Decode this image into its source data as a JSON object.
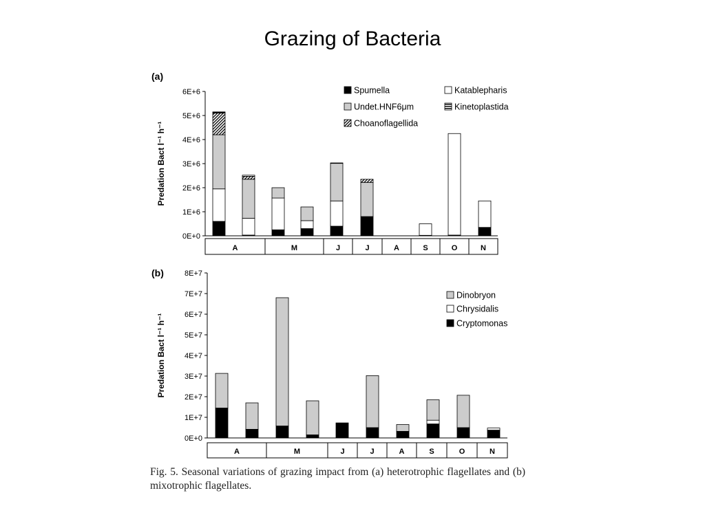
{
  "slide": {
    "title": "Grazing of Bacteria"
  },
  "caption": "Fig. 5. Seasonal variations of grazing impact from (a) heterotrophic flagellates and (b) mixotrophic flagellates.",
  "colors": {
    "black": "#000000",
    "grey": "#cccccc",
    "white": "#ffffff"
  },
  "chart_data": [
    {
      "type": "bar",
      "stacked": true,
      "panel_label": "(a)",
      "ylabel": "Predation Bact l⁻¹ h⁻¹",
      "ylim": [
        0,
        6000000
      ],
      "yticks": [
        "0E+0",
        "1E+6",
        "2E+6",
        "3E+6",
        "4E+6",
        "5E+6",
        "6E+6"
      ],
      "months": [
        "A",
        "M",
        "J",
        "J",
        "A",
        "S",
        "O",
        "N"
      ],
      "legend": [
        {
          "name": "Spumella",
          "pattern": "black"
        },
        {
          "name": "Katablepharis",
          "pattern": "white"
        },
        {
          "name": "Undet.HNF6μm",
          "pattern": "grey"
        },
        {
          "name": "Kinetoplastida",
          "pattern": "hstripe"
        },
        {
          "name": "Choanoflagellida",
          "pattern": "diag"
        }
      ],
      "bars": [
        {
          "segments": [
            600000,
            1350000,
            2250000,
            50000,
            900000
          ]
        },
        {
          "segments": [
            30000,
            700000,
            1620000,
            50000,
            120000
          ]
        },
        {
          "segments": [
            250000,
            1320000,
            430000,
            0,
            0
          ]
        },
        {
          "segments": [
            300000,
            330000,
            570000,
            0,
            0
          ]
        },
        {
          "segments": [
            400000,
            1050000,
            1560000,
            20000,
            0
          ]
        },
        {
          "segments": [
            800000,
            0,
            1420000,
            0,
            130000
          ]
        },
        {
          "segments": [
            0,
            0,
            0,
            0,
            0
          ]
        },
        {
          "segments": [
            20000,
            480000,
            0,
            0,
            0
          ]
        },
        {
          "segments": [
            30000,
            4220000,
            0,
            0,
            0
          ]
        },
        {
          "segments": [
            350000,
            1100000,
            0,
            0,
            0
          ]
        }
      ]
    },
    {
      "type": "bar",
      "stacked": true,
      "panel_label": "(b)",
      "ylabel": "Predation Bact l⁻¹ h⁻¹",
      "ylim": [
        0,
        80000000
      ],
      "yticks": [
        "0E+0",
        "1E+7",
        "2E+7",
        "3E+7",
        "4E+7",
        "5E+7",
        "6E+7",
        "7E+7",
        "8E+7"
      ],
      "months": [
        "A",
        "M",
        "J",
        "J",
        "A",
        "S",
        "O",
        "N"
      ],
      "legend": [
        {
          "name": "Dinobryon",
          "pattern": "grey"
        },
        {
          "name": "Chrysidalis",
          "pattern": "white"
        },
        {
          "name": "Cryptomonas",
          "pattern": "black"
        }
      ],
      "bars": [
        {
          "segments": [
            14500000,
            0,
            16800000
          ]
        },
        {
          "segments": [
            4200000,
            0,
            12800000
          ]
        },
        {
          "segments": [
            5800000,
            0,
            62200000
          ]
        },
        {
          "segments": [
            1500000,
            0,
            16500000
          ]
        },
        {
          "segments": [
            7300000,
            0,
            0
          ]
        },
        {
          "segments": [
            5000000,
            0,
            25200000
          ]
        },
        {
          "segments": [
            3200000,
            0,
            3300000
          ]
        },
        {
          "segments": [
            6800000,
            1800000,
            9900000
          ]
        },
        {
          "segments": [
            5000000,
            0,
            15700000
          ]
        },
        {
          "segments": [
            3800000,
            1000000,
            0
          ]
        }
      ]
    }
  ]
}
